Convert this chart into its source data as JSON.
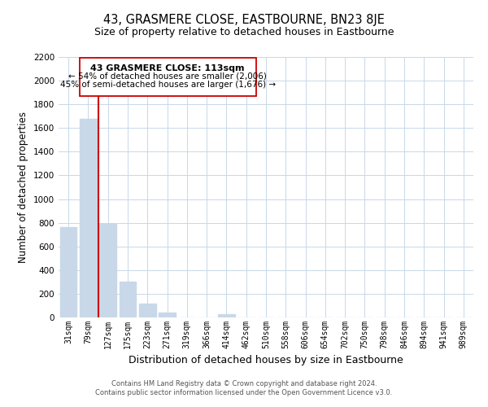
{
  "title": "43, GRASMERE CLOSE, EASTBOURNE, BN23 8JE",
  "subtitle": "Size of property relative to detached houses in Eastbourne",
  "xlabel": "Distribution of detached houses by size in Eastbourne",
  "ylabel": "Number of detached properties",
  "categories": [
    "31sqm",
    "79sqm",
    "127sqm",
    "175sqm",
    "223sqm",
    "271sqm",
    "319sqm",
    "366sqm",
    "414sqm",
    "462sqm",
    "510sqm",
    "558sqm",
    "606sqm",
    "654sqm",
    "702sqm",
    "750sqm",
    "798sqm",
    "846sqm",
    "894sqm",
    "941sqm",
    "989sqm"
  ],
  "values": [
    760,
    1680,
    790,
    300,
    115,
    38,
    0,
    0,
    25,
    0,
    0,
    0,
    0,
    0,
    0,
    0,
    0,
    0,
    0,
    0,
    0
  ],
  "bar_color": "#c8d8e8",
  "vline_color": "#cc0000",
  "ylim": [
    0,
    2200
  ],
  "yticks": [
    0,
    200,
    400,
    600,
    800,
    1000,
    1200,
    1400,
    1600,
    1800,
    2000,
    2200
  ],
  "annotation_title": "43 GRASMERE CLOSE: 113sqm",
  "annotation_line1": "← 54% of detached houses are smaller (2,006)",
  "annotation_line2": "45% of semi-detached houses are larger (1,676) →",
  "footer_line1": "Contains HM Land Registry data © Crown copyright and database right 2024.",
  "footer_line2": "Contains public sector information licensed under the Open Government Licence v3.0.",
  "background_color": "#ffffff",
  "grid_color": "#c8d8e8",
  "title_fontsize": 10.5,
  "subtitle_fontsize": 9,
  "ylabel_fontsize": 8.5,
  "xlabel_fontsize": 9
}
